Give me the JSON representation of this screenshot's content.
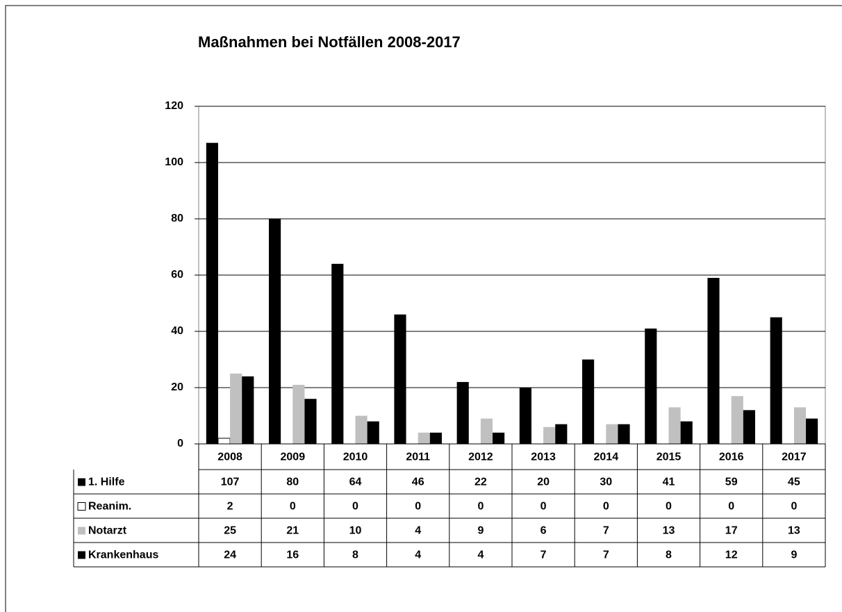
{
  "chart_data": {
    "type": "bar",
    "title": "Maßnahmen bei Notfällen 2008-2017",
    "categories": [
      "2008",
      "2009",
      "2010",
      "2011",
      "2012",
      "2013",
      "2014",
      "2015",
      "2016",
      "2017"
    ],
    "series": [
      {
        "name": "1. Hilfe",
        "color": "#000000",
        "values": [
          107,
          80,
          64,
          46,
          22,
          20,
          30,
          41,
          59,
          45
        ]
      },
      {
        "name": "Reanim.",
        "color": "#ffffff",
        "values": [
          2,
          0,
          0,
          0,
          0,
          0,
          0,
          0,
          0,
          0
        ]
      },
      {
        "name": "Notarzt",
        "color": "#c0c0c0",
        "values": [
          25,
          21,
          10,
          4,
          9,
          6,
          7,
          13,
          17,
          13
        ]
      },
      {
        "name": "Krankenhaus",
        "color": "#000000",
        "values": [
          24,
          16,
          8,
          4,
          4,
          7,
          7,
          8,
          12,
          9
        ]
      }
    ],
    "ylim": [
      0,
      120
    ],
    "yticks": [
      0,
      20,
      40,
      60,
      80,
      100,
      120
    ],
    "grid": true
  }
}
